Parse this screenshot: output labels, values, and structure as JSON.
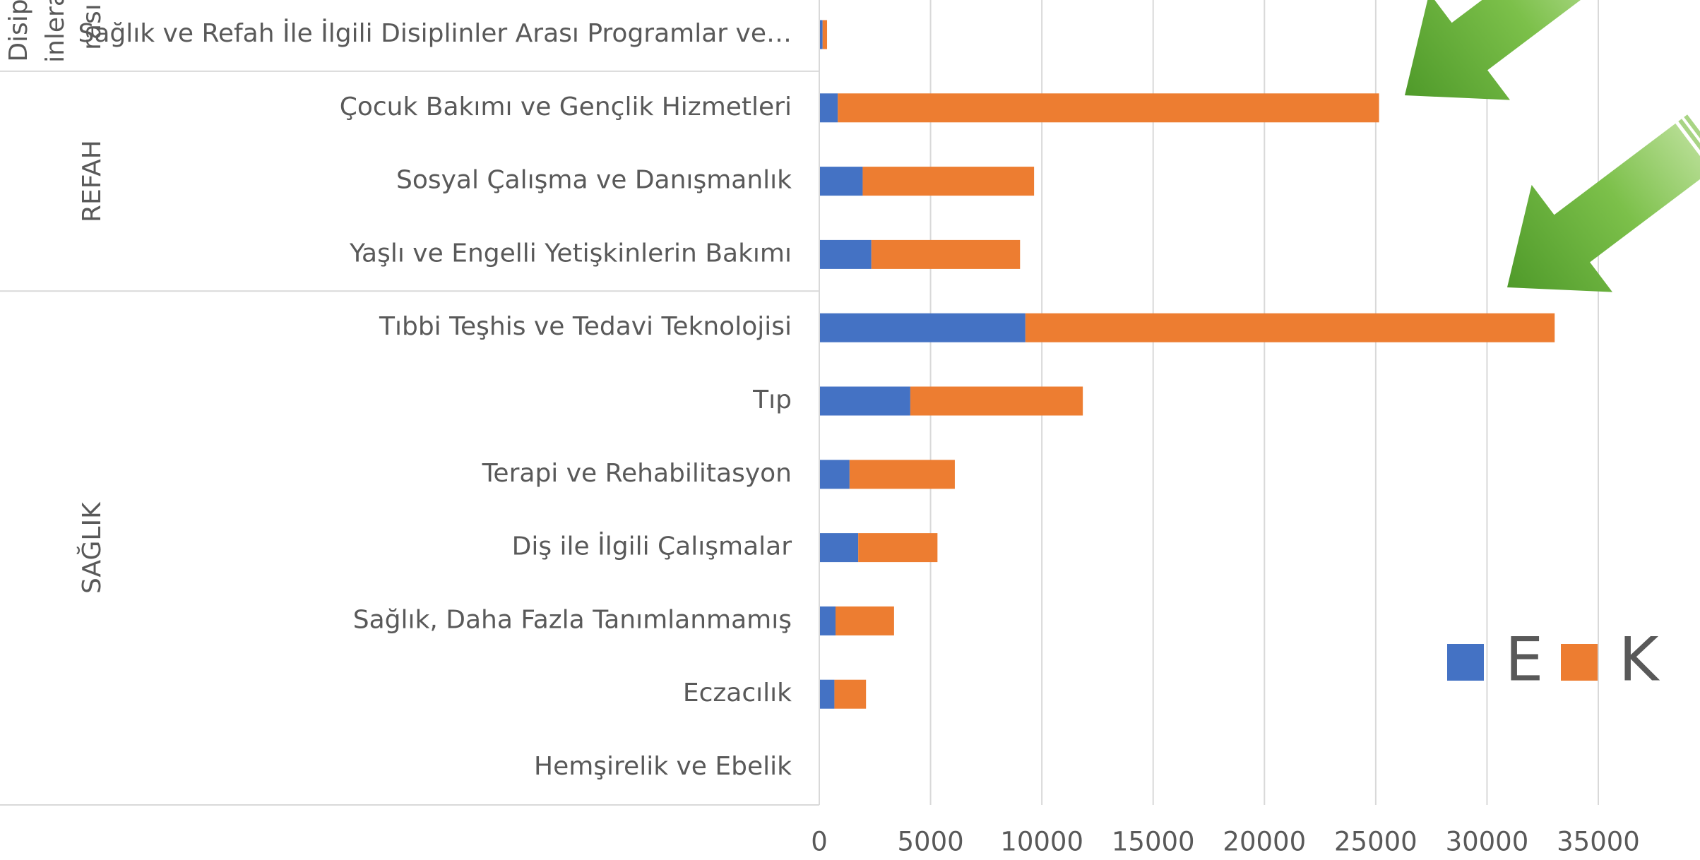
{
  "chart_data": {
    "type": "stacked_barh",
    "categories": [
      "Sağlık ve Refah İle İlgili Disiplinler Arası Programlar ve…",
      "Çocuk Bakımı ve Gençlik Hizmetleri",
      "Sosyal Çalışma ve Danışmanlık",
      "Yaşlı ve Engelli Yetişkinlerin Bakımı",
      "Tıbbi Teşhis ve Tedavi Teknolojisi",
      "Tıp",
      "Terapi ve Rehabilitasyon",
      "Diş ile İlgili Çalışmalar",
      "Sağlık, Daha Fazla Tanımlanmamış",
      "Eczacılık",
      "Hemşirelik ve Ebelik"
    ],
    "groups": [
      {
        "lines": [
          "Disipl",
          "inlera",
          "rası"
        ],
        "count": 1
      },
      {
        "lines": [
          "REFAH"
        ],
        "count": 3
      },
      {
        "lines": [
          "SAĞLIK"
        ],
        "count": 7
      }
    ],
    "series": [
      {
        "name": "E",
        "color": "#4472c4",
        "values": [
          150,
          830,
          1950,
          2340,
          9260,
          4090,
          1360,
          1750,
          730,
          680,
          0
        ]
      },
      {
        "name": "K",
        "color": "#ed7d31",
        "values": [
          200,
          24320,
          7700,
          6680,
          23780,
          7750,
          4730,
          3560,
          2630,
          1420,
          0
        ]
      }
    ],
    "xlim": [
      0,
      35000
    ],
    "xticks": [
      0,
      5000,
      10000,
      15000,
      20000,
      25000,
      30000,
      35000
    ],
    "grid": true,
    "legend": "right"
  }
}
